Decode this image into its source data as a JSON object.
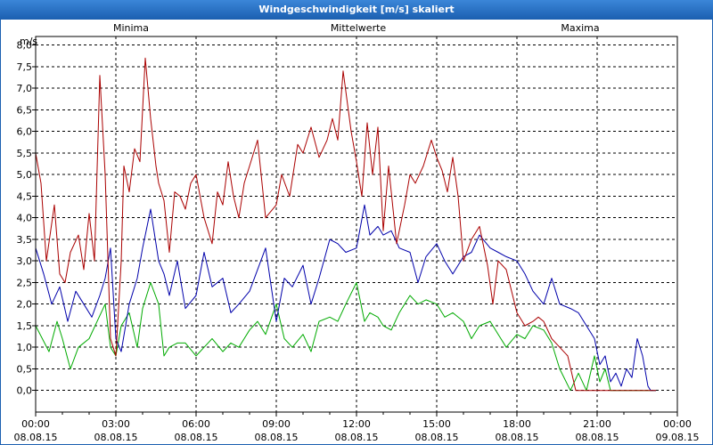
{
  "window": {
    "title": "Windgeschwindigkeit [m/s] skaliert"
  },
  "chart_data": {
    "type": "line",
    "title": "Windgeschwindigkeit [m/s] skaliert",
    "ylabel": "m/s",
    "xlabel": "",
    "ylim": [
      -0.5,
      8.2
    ],
    "xlim": [
      0,
      24
    ],
    "grid": true,
    "legend": [
      "Minima",
      "Mittelwerte",
      "Maxima"
    ],
    "y_ticks": [
      "0,0",
      "0,5",
      "1,0",
      "1,5",
      "2,0",
      "2,5",
      "3,0",
      "3,5",
      "4,0",
      "4,5",
      "5,0",
      "5,5",
      "6,0",
      "6,5",
      "7,0",
      "7,5",
      "8,0"
    ],
    "x_ticks": [
      {
        "time": "00:00",
        "date": "08.08.15"
      },
      {
        "time": "03:00",
        "date": "08.08.15"
      },
      {
        "time": "06:00",
        "date": "08.08.15"
      },
      {
        "time": "09:00",
        "date": "08.08.15"
      },
      {
        "time": "12:00",
        "date": "08.08.15"
      },
      {
        "time": "15:00",
        "date": "08.08.15"
      },
      {
        "time": "18:00",
        "date": "08.08.15"
      },
      {
        "time": "21:00",
        "date": "08.08.15"
      },
      {
        "time": "00:00",
        "date": "09.08.15"
      }
    ],
    "series": [
      {
        "name": "Minima",
        "color": "#00aa00",
        "x": [
          0,
          0.5,
          0.8,
          1.0,
          1.3,
          1.6,
          2.0,
          2.3,
          2.6,
          2.8,
          3.0,
          3.2,
          3.5,
          3.8,
          4.0,
          4.3,
          4.6,
          4.8,
          5.0,
          5.3,
          5.6,
          6.0,
          6.3,
          6.6,
          7.0,
          7.3,
          7.6,
          8.0,
          8.3,
          8.6,
          9.0,
          9.3,
          9.6,
          10.0,
          10.3,
          10.6,
          11.0,
          11.3,
          11.6,
          12.0,
          12.3,
          12.5,
          12.8,
          13.0,
          13.3,
          13.6,
          14.0,
          14.3,
          14.6,
          15.0,
          15.3,
          15.6,
          16.0,
          16.3,
          16.6,
          17.0,
          17.3,
          17.6,
          18.0,
          18.3,
          18.6,
          19.0,
          19.3,
          19.6,
          20.0,
          20.3,
          20.6,
          20.9,
          21.1,
          21.3,
          21.5,
          21.7,
          21.9,
          22.1,
          22.3,
          22.5,
          22.7,
          22.9,
          23.0,
          23.2
        ],
        "y": [
          1.5,
          0.9,
          1.6,
          1.2,
          0.5,
          1.0,
          1.2,
          1.6,
          2.0,
          1.0,
          0.8,
          1.5,
          1.8,
          1.0,
          1.9,
          2.5,
          2.0,
          0.8,
          1.0,
          1.1,
          1.1,
          0.8,
          1.0,
          1.2,
          0.9,
          1.1,
          1.0,
          1.4,
          1.6,
          1.3,
          2.0,
          1.2,
          1.0,
          1.3,
          0.9,
          1.6,
          1.7,
          1.6,
          2.0,
          2.5,
          1.6,
          1.8,
          1.7,
          1.5,
          1.4,
          1.8,
          2.2,
          2.0,
          2.1,
          2.0,
          1.7,
          1.8,
          1.6,
          1.2,
          1.5,
          1.6,
          1.3,
          1.0,
          1.3,
          1.2,
          1.5,
          1.4,
          1.1,
          0.5,
          0.0,
          0.4,
          0.0,
          0.8,
          0.2,
          0.5,
          0.0,
          0.0,
          0.0,
          0.0,
          0.0,
          0.0,
          0.0,
          0.0,
          0.0,
          0.0
        ]
      },
      {
        "name": "Mittelwerte",
        "color": "#0000aa",
        "x": [
          0,
          0.3,
          0.6,
          0.9,
          1.2,
          1.5,
          1.8,
          2.1,
          2.4,
          2.6,
          2.8,
          3.0,
          3.2,
          3.5,
          3.8,
          4.0,
          4.3,
          4.6,
          4.8,
          5.0,
          5.3,
          5.6,
          6.0,
          6.3,
          6.6,
          7.0,
          7.3,
          7.6,
          8.0,
          8.3,
          8.6,
          9.0,
          9.3,
          9.6,
          10.0,
          10.3,
          10.6,
          11.0,
          11.3,
          11.6,
          12.0,
          12.3,
          12.5,
          12.8,
          13.0,
          13.3,
          13.6,
          14.0,
          14.3,
          14.6,
          15.0,
          15.3,
          15.6,
          16.0,
          16.3,
          16.6,
          17.0,
          17.3,
          17.6,
          18.0,
          18.3,
          18.6,
          19.0,
          19.3,
          19.6,
          20.0,
          20.3,
          20.6,
          20.9,
          21.1,
          21.3,
          21.5,
          21.7,
          21.9,
          22.1,
          22.3,
          22.5,
          22.7,
          22.9,
          23.0,
          23.2
        ],
        "y": [
          3.3,
          2.7,
          2.0,
          2.4,
          1.6,
          2.3,
          2.0,
          1.7,
          2.2,
          2.6,
          3.3,
          1.2,
          0.9,
          2.0,
          2.6,
          3.3,
          4.2,
          3.0,
          2.7,
          2.2,
          3.0,
          1.9,
          2.2,
          3.2,
          2.4,
          2.6,
          1.8,
          2.0,
          2.3,
          2.8,
          3.3,
          1.6,
          2.6,
          2.4,
          2.9,
          2.0,
          2.6,
          3.5,
          3.4,
          3.2,
          3.3,
          4.3,
          3.6,
          3.8,
          3.6,
          3.7,
          3.3,
          3.2,
          2.5,
          3.1,
          3.4,
          3.0,
          2.7,
          3.1,
          3.2,
          3.6,
          3.3,
          3.2,
          3.1,
          3.0,
          2.7,
          2.3,
          2.0,
          2.6,
          2.0,
          1.9,
          1.8,
          1.5,
          1.2,
          0.6,
          0.8,
          0.2,
          0.4,
          0.1,
          0.5,
          0.3,
          1.2,
          0.8,
          0.1,
          0.0,
          0.0
        ]
      },
      {
        "name": "Maxima",
        "color": "#aa0000",
        "x": [
          0,
          0.2,
          0.4,
          0.7,
          0.9,
          1.1,
          1.3,
          1.6,
          1.8,
          2.0,
          2.2,
          2.4,
          2.6,
          2.8,
          3.0,
          3.2,
          3.3,
          3.5,
          3.7,
          3.9,
          4.1,
          4.3,
          4.5,
          4.6,
          4.8,
          5.0,
          5.2,
          5.4,
          5.6,
          5.8,
          6.0,
          6.3,
          6.6,
          6.8,
          7.0,
          7.2,
          7.4,
          7.6,
          7.8,
          8.0,
          8.3,
          8.6,
          9.0,
          9.2,
          9.5,
          9.8,
          10.0,
          10.3,
          10.6,
          10.9,
          11.1,
          11.3,
          11.5,
          11.8,
          12.0,
          12.2,
          12.4,
          12.6,
          12.8,
          13.0,
          13.2,
          13.5,
          13.8,
          14.0,
          14.2,
          14.5,
          14.8,
          15.0,
          15.2,
          15.4,
          15.6,
          15.8,
          16.0,
          16.3,
          16.6,
          16.9,
          17.1,
          17.3,
          17.6,
          18.0,
          18.3,
          18.6,
          18.8,
          19.0,
          19.3,
          19.6,
          19.9,
          20.2,
          20.5,
          20.8,
          21.0,
          21.2,
          21.4,
          21.6,
          21.8,
          22.0,
          22.2,
          22.4,
          22.6,
          22.8,
          23.0,
          23.2
        ],
        "y": [
          5.5,
          4.8,
          3.0,
          4.3,
          2.7,
          2.5,
          3.2,
          3.6,
          2.8,
          4.1,
          3.0,
          7.3,
          5.0,
          1.2,
          0.8,
          3.0,
          5.2,
          4.6,
          5.6,
          5.3,
          7.7,
          6.3,
          5.2,
          4.8,
          4.4,
          3.2,
          4.6,
          4.5,
          4.2,
          4.8,
          5.0,
          4.0,
          3.4,
          4.6,
          4.3,
          5.3,
          4.5,
          4.0,
          4.8,
          5.2,
          5.8,
          4.0,
          4.3,
          5.0,
          4.5,
          5.7,
          5.5,
          6.1,
          5.4,
          5.8,
          6.3,
          5.8,
          7.4,
          6.0,
          5.3,
          4.5,
          6.2,
          5.0,
          6.1,
          3.7,
          5.2,
          3.4,
          4.3,
          5.0,
          4.8,
          5.2,
          5.8,
          5.4,
          5.1,
          4.6,
          5.4,
          4.5,
          3.0,
          3.5,
          3.8,
          2.9,
          2.0,
          3.0,
          2.8,
          1.8,
          1.5,
          1.6,
          1.7,
          1.6,
          1.2,
          1.0,
          0.8,
          0.0,
          0.0,
          0.0,
          0.0,
          0.0,
          0.0,
          0.0,
          0.0,
          0.0,
          0.0,
          0.0,
          0.0,
          0.0,
          0.0,
          0.0
        ]
      }
    ]
  }
}
